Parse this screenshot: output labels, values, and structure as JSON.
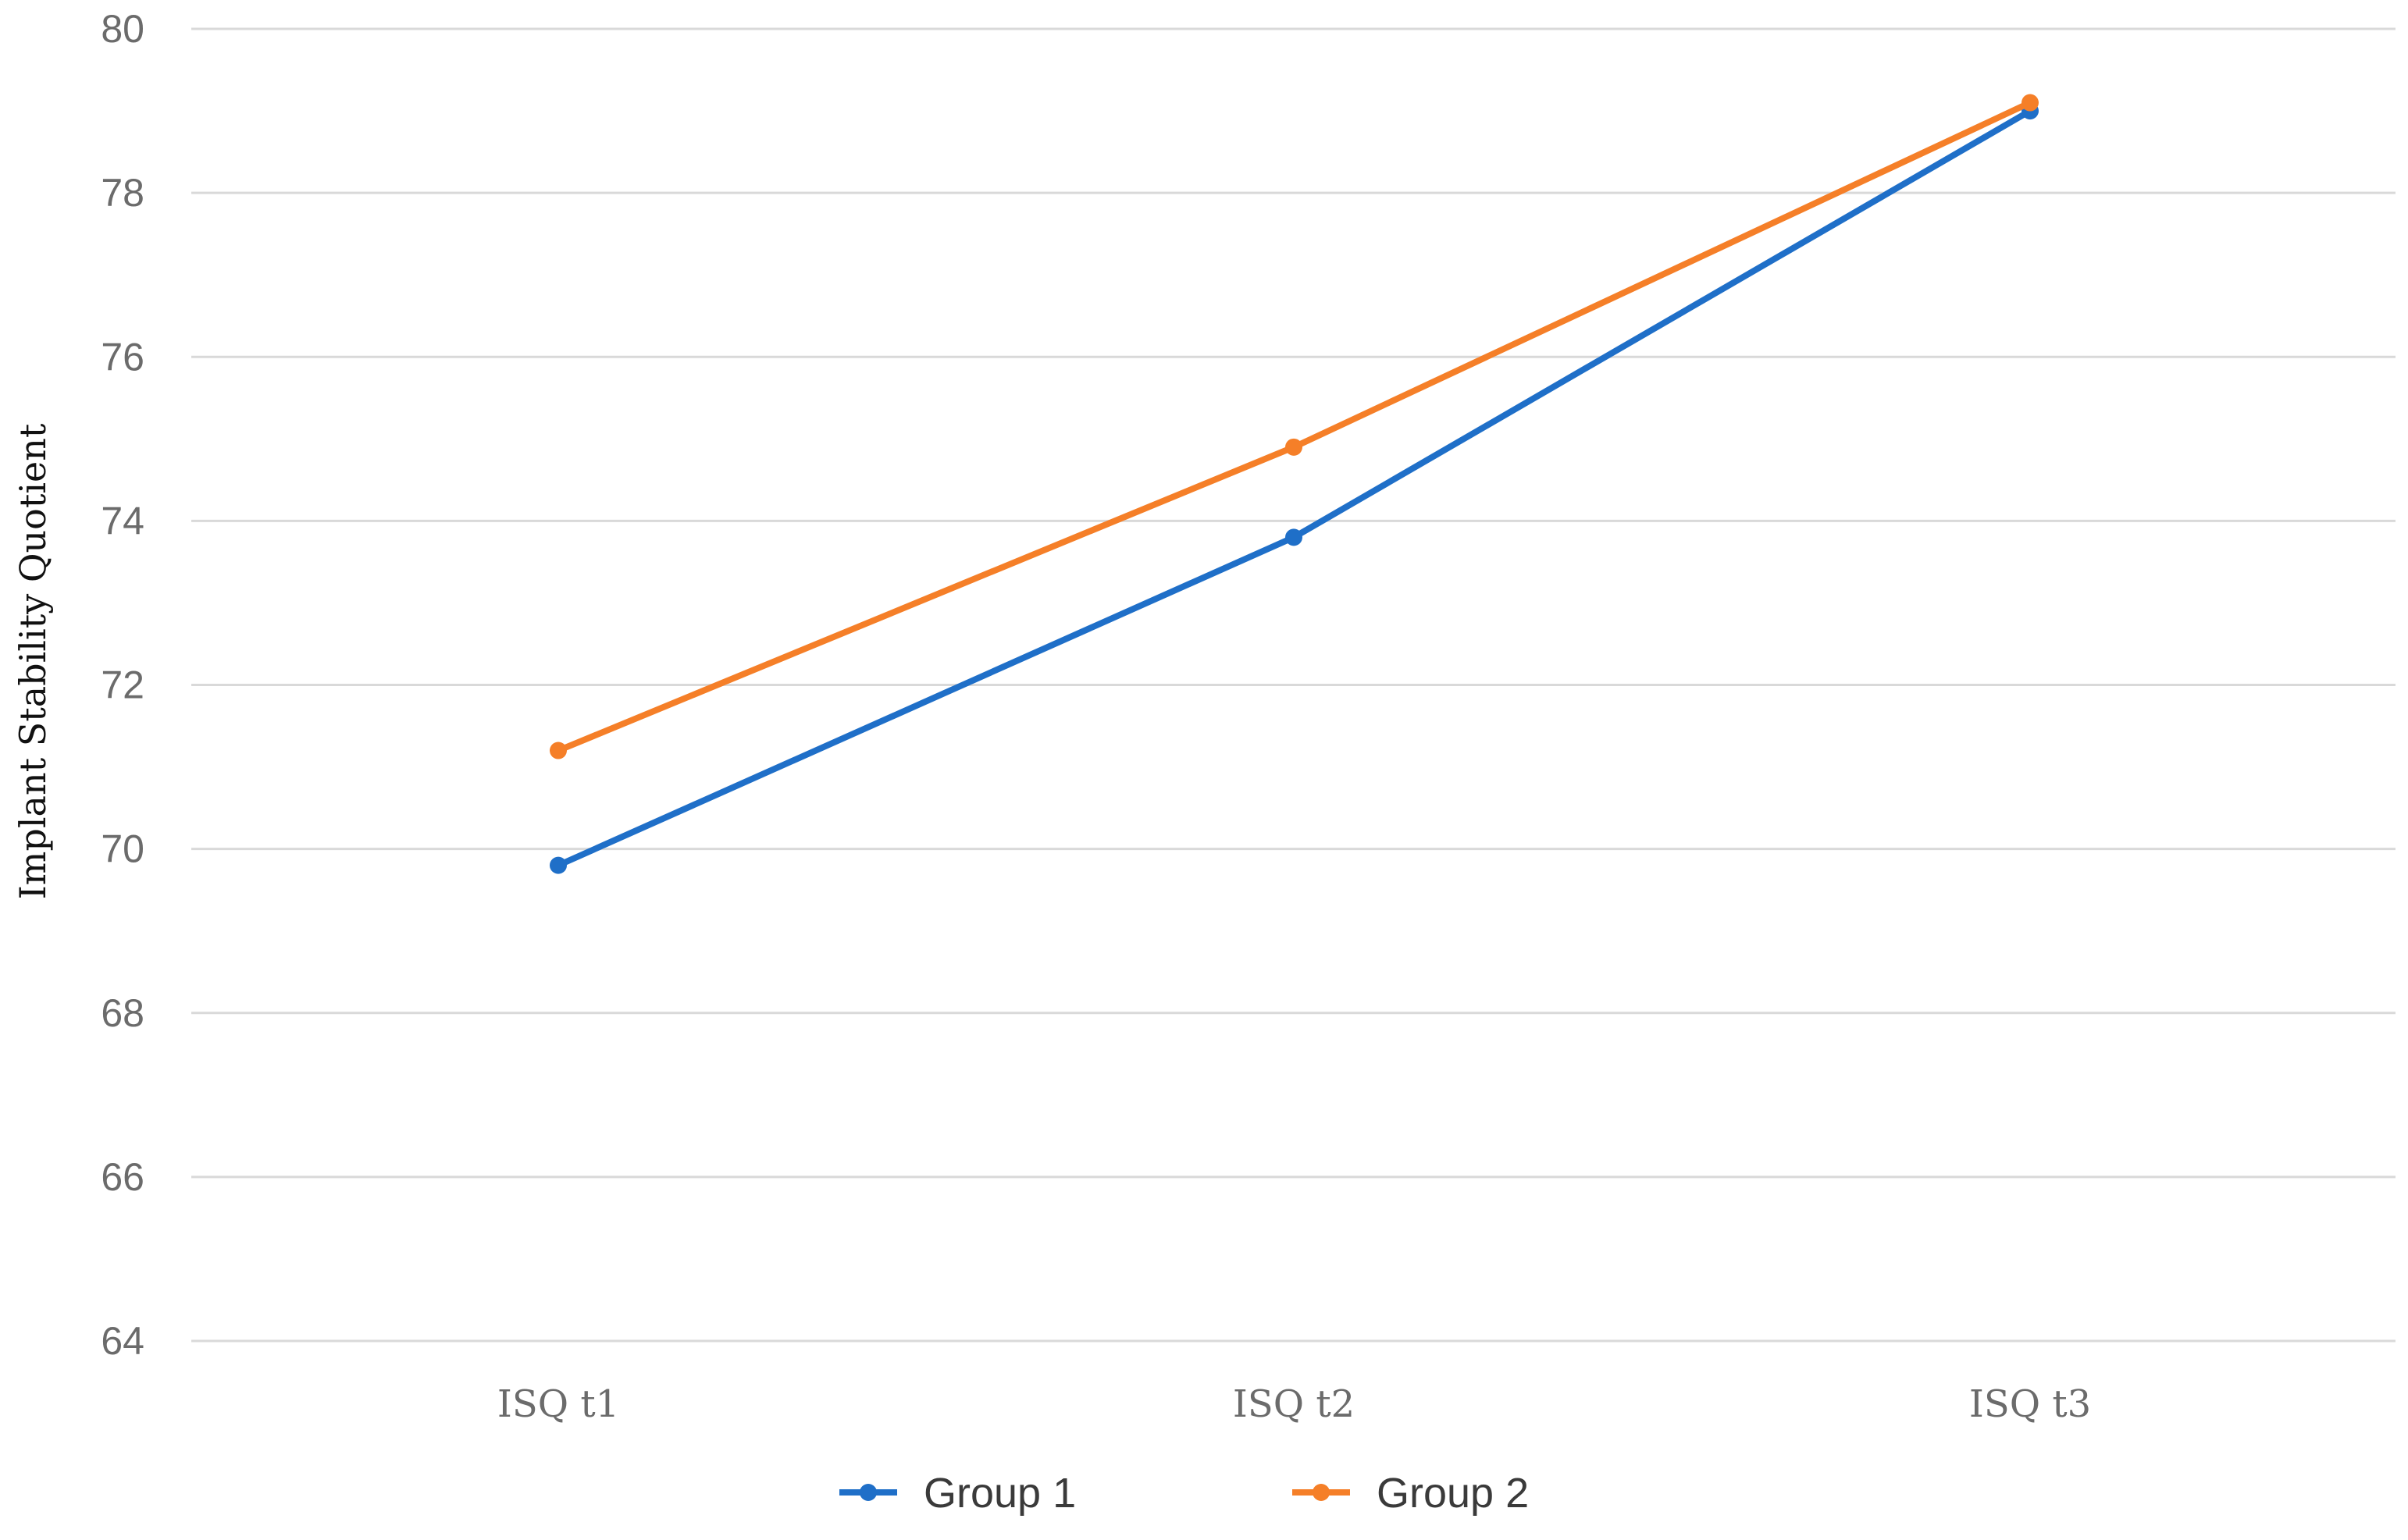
{
  "chart_data": {
    "type": "line",
    "title": "",
    "xlabel": "",
    "ylabel": "Implant Stability Quotient",
    "categories": [
      "ISQ t1",
      "ISQ t2",
      "ISQ t3"
    ],
    "ylim": [
      64,
      80
    ],
    "yticks": [
      64,
      66,
      68,
      70,
      72,
      74,
      76,
      78,
      80
    ],
    "grid": true,
    "legend_position": "bottom",
    "series": [
      {
        "name": "Group 1",
        "color": "#1f6fc8",
        "values": [
          69.8,
          73.8,
          79.0
        ]
      },
      {
        "name": "Group 2",
        "color": "#f57f28",
        "values": [
          71.2,
          74.9,
          79.1
        ]
      }
    ]
  }
}
